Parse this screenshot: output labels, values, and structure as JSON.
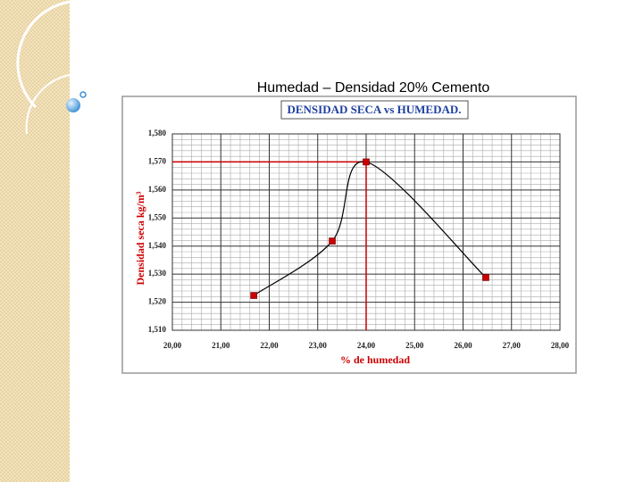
{
  "slide": {
    "title": "Humedad – Densidad 20% Cemento"
  },
  "chart_data": {
    "type": "line",
    "title": "DENSIDAD SECA vs HUMEDAD.",
    "x_label": "% de humedad",
    "y_label": "Densidad seca kg/m³",
    "x": [
      21.68,
      23.3,
      24.0,
      26.47
    ],
    "series": [
      {
        "color": "#cc0000",
        "values": [
          1522.4,
          1541.8,
          1570,
          1528.8
        ]
      }
    ],
    "xlim": [
      20,
      28
    ],
    "ylim": [
      1510,
      1580
    ],
    "xticks": [
      {
        "value": 20,
        "label": "20,00"
      },
      {
        "value": 21,
        "label": "21,00"
      },
      {
        "value": 22,
        "label": "22,00"
      },
      {
        "value": 23,
        "label": "23,00"
      },
      {
        "value": 24,
        "label": "24,00"
      },
      {
        "value": 25,
        "label": "25,00"
      },
      {
        "value": 26,
        "label": "26,00"
      },
      {
        "value": 27,
        "label": "27,00"
      },
      {
        "value": 28,
        "label": "28,00"
      }
    ],
    "yticks": [
      {
        "value": 1510,
        "label": "1,510"
      },
      {
        "value": 1520,
        "label": "1,520"
      },
      {
        "value": 1530,
        "label": "1,530"
      },
      {
        "value": 1540,
        "label": "1,540"
      },
      {
        "value": 1550,
        "label": "1,550"
      },
      {
        "value": 1560,
        "label": "1,560"
      },
      {
        "value": 1570,
        "label": "1,570"
      },
      {
        "value": 1580,
        "label": "1,580"
      }
    ],
    "grid": true,
    "minor_divisions": 5,
    "smooth": true,
    "marker": "square"
  }
}
